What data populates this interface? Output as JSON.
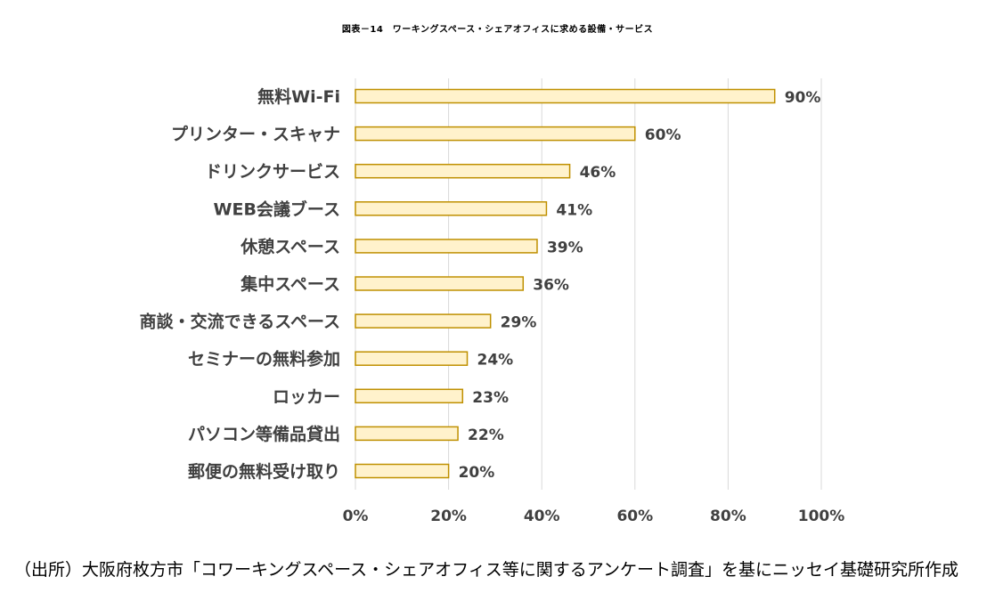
{
  "chart_data": {
    "type": "bar",
    "orientation": "horizontal",
    "title": "図表－14　ワーキングスペース・シェアオフィスに求める設備・サービス",
    "categories": [
      "無料Wi-Fi",
      "プリンター・スキャナ",
      "ドリンクサービス",
      "WEB会議ブース",
      "休憩スペース",
      "集中スペース",
      "商談・交流できるスペース",
      "セミナーの無料参加",
      "ロッカー",
      "パソコン等備品貸出",
      "郵便の無料受け取り"
    ],
    "values": [
      90,
      60,
      46,
      41,
      39,
      36,
      29,
      24,
      23,
      22,
      20
    ],
    "value_labels": [
      "90%",
      "60%",
      "46%",
      "41%",
      "39%",
      "36%",
      "29%",
      "24%",
      "23%",
      "22%",
      "20%"
    ],
    "xlim": [
      0,
      100
    ],
    "x_ticks": [
      "0%",
      "20%",
      "40%",
      "60%",
      "80%",
      "100%"
    ],
    "xlabel": "",
    "ylabel": "",
    "grid": true,
    "bar_fill": "#fff2cc",
    "bar_stroke": "#bf9000",
    "grid_color": "#d9d9d9",
    "label_color": "#404040"
  },
  "footer": {
    "source": "（出所）大阪府枚方市「コワーキングスペース・シェアオフィス等に関するアンケート調査」を基にニッセイ基礎研究所作成"
  }
}
